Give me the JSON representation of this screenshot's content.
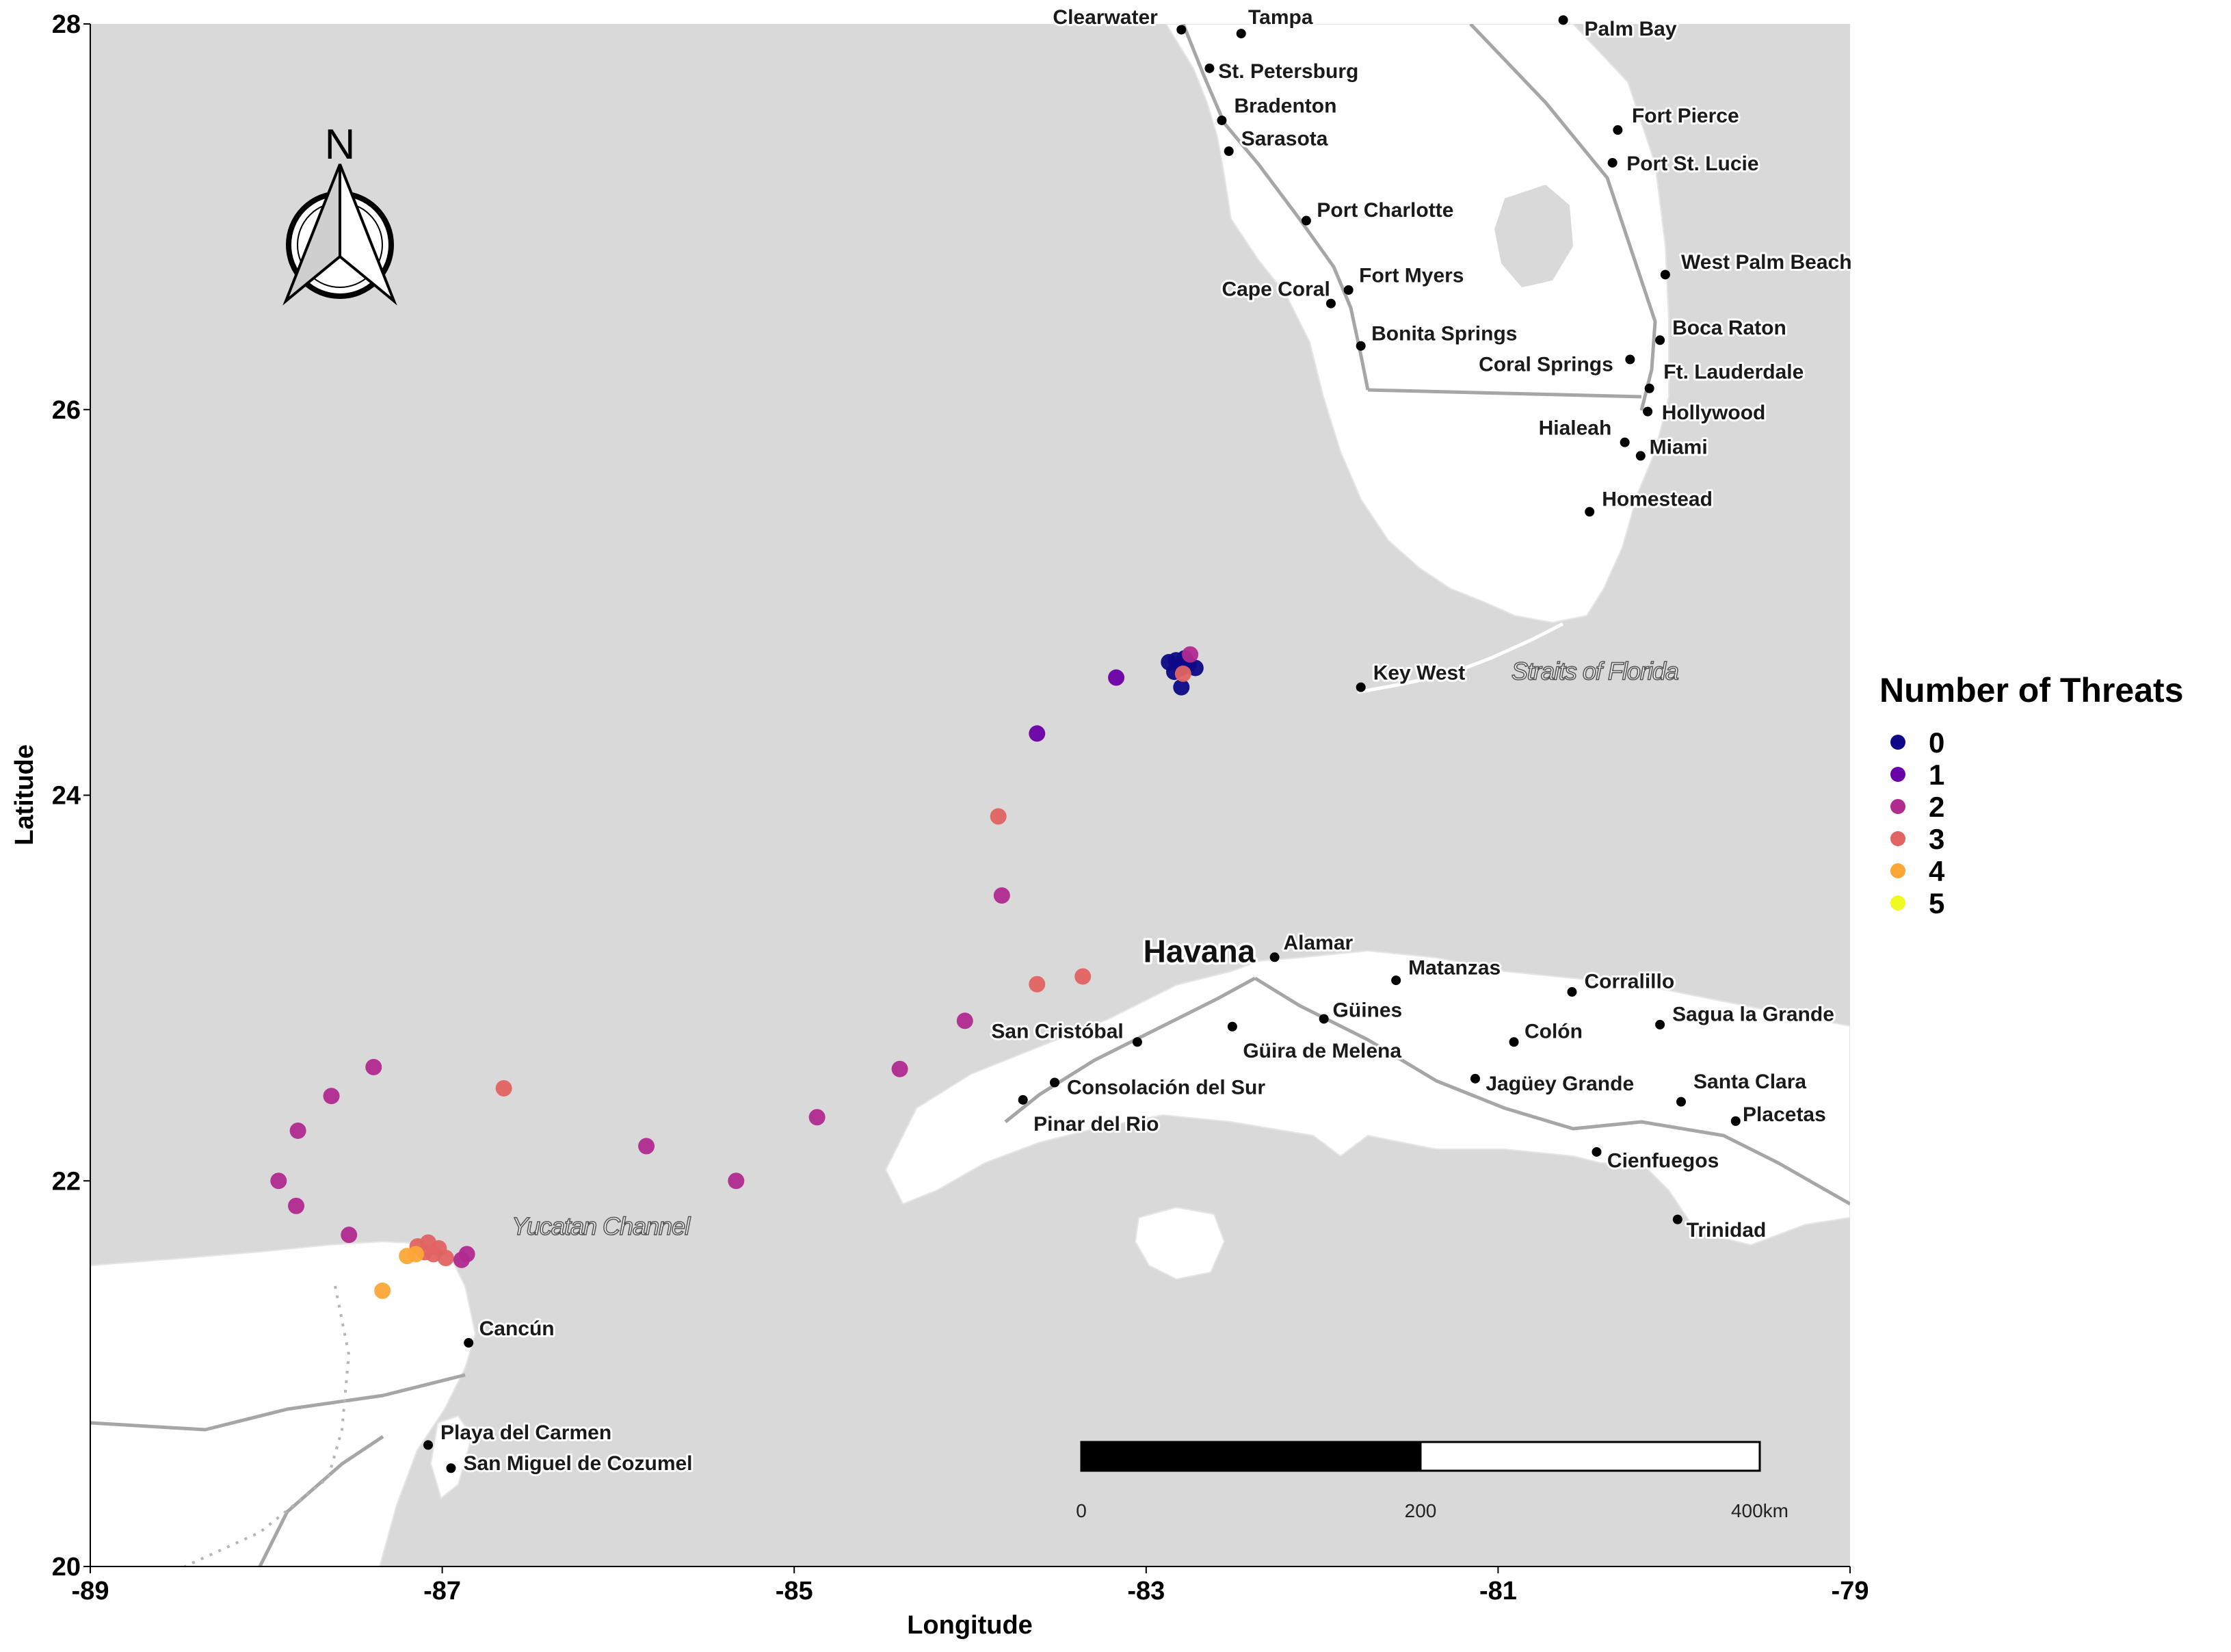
{
  "map": {
    "x_axis": {
      "title": "Longitude",
      "range": [
        -89,
        -79
      ],
      "ticks": [
        -89,
        -87,
        -85,
        -83,
        -81,
        -79
      ],
      "tick_labels": [
        "-89",
        "-87",
        "-85",
        "-83",
        "-81",
        "-79"
      ]
    },
    "y_axis": {
      "title": "Latitude",
      "range": [
        20,
        28
      ],
      "ticks": [
        20,
        22,
        24,
        26,
        28
      ],
      "tick_labels": [
        "20",
        "22",
        "24",
        "26",
        "28"
      ]
    },
    "north_arrow": {
      "label": "N",
      "icon": "north-arrow-icon"
    },
    "scale_bar": {
      "labels": [
        "0",
        "200",
        "400km"
      ],
      "units": "km"
    },
    "water_labels": [
      {
        "text": "Yucatan Channel",
        "lon": -86.1,
        "lat": 21.72
      },
      {
        "text": "Straits of Florida",
        "lon": -80.45,
        "lat": 24.6
      }
    ],
    "capital": {
      "text": "Havana",
      "lon": -82.38,
      "lat": 23.12
    },
    "cities": [
      {
        "name": "Clearwater",
        "lon": -82.8,
        "lat": 27.97,
        "label_lon": -83.53,
        "label_lat": 28.0
      },
      {
        "name": "Tampa",
        "lon": -82.46,
        "lat": 27.95,
        "label_lon": -82.42,
        "label_lat": 28.0
      },
      {
        "name": "Palm Bay",
        "lon": -80.63,
        "lat": 28.02,
        "label_lon": -80.51,
        "label_lat": 27.94
      },
      {
        "name": "St. Petersburg",
        "lon": -82.64,
        "lat": 27.77,
        "label_lon": -82.59,
        "label_lat": 27.72
      },
      {
        "name": "Bradenton",
        "lon": -82.57,
        "lat": 27.5,
        "label_lon": -82.5,
        "label_lat": 27.54
      },
      {
        "name": "Sarasota",
        "lon": -82.53,
        "lat": 27.34,
        "label_lon": -82.46,
        "label_lat": 27.37
      },
      {
        "name": "Fort Pierce",
        "lon": -80.32,
        "lat": 27.45,
        "label_lon": -80.24,
        "label_lat": 27.49
      },
      {
        "name": "Port St. Lucie",
        "lon": -80.35,
        "lat": 27.28,
        "label_lon": -80.27,
        "label_lat": 27.24
      },
      {
        "name": "Port Charlotte",
        "lon": -82.09,
        "lat": 26.98,
        "label_lon": -82.03,
        "label_lat": 27.0
      },
      {
        "name": "West Palm Beach",
        "lon": -80.05,
        "lat": 26.7,
        "label_lon": -79.96,
        "label_lat": 26.73
      },
      {
        "name": "Fort Myers",
        "lon": -81.85,
        "lat": 26.62,
        "label_lon": -81.79,
        "label_lat": 26.66
      },
      {
        "name": "Cape Coral",
        "lon": -81.95,
        "lat": 26.55,
        "label_lon": -82.57,
        "label_lat": 26.59
      },
      {
        "name": "Bonita Springs",
        "lon": -81.78,
        "lat": 26.33,
        "label_lon": -81.72,
        "label_lat": 26.36
      },
      {
        "name": "Boca Raton",
        "lon": -80.08,
        "lat": 26.36,
        "label_lon": -80.01,
        "label_lat": 26.39
      },
      {
        "name": "Coral Springs",
        "lon": -80.25,
        "lat": 26.26,
        "label_lon": -81.11,
        "label_lat": 26.2
      },
      {
        "name": "Ft. Lauderdale",
        "lon": -80.14,
        "lat": 26.11,
        "label_lon": -80.06,
        "label_lat": 26.16
      },
      {
        "name": "Hollywood",
        "lon": -80.15,
        "lat": 25.99,
        "label_lon": -80.07,
        "label_lat": 25.95
      },
      {
        "name": "Hialeah",
        "lon": -80.28,
        "lat": 25.83,
        "label_lon": -80.77,
        "label_lat": 25.87
      },
      {
        "name": "Miami",
        "lon": -80.19,
        "lat": 25.76,
        "label_lon": -80.14,
        "label_lat": 25.77
      },
      {
        "name": "Homestead",
        "lon": -80.48,
        "lat": 25.47,
        "label_lon": -80.41,
        "label_lat": 25.5
      },
      {
        "name": "Key West",
        "lon": -81.78,
        "lat": 24.56,
        "label_lon": -81.71,
        "label_lat": 24.6
      },
      {
        "name": "Alamar",
        "lon": -82.27,
        "lat": 23.16,
        "label_lon": -82.22,
        "label_lat": 23.2
      },
      {
        "name": "Matanzas",
        "lon": -81.58,
        "lat": 23.04,
        "label_lon": -81.51,
        "label_lat": 23.07
      },
      {
        "name": "Corralillo",
        "lon": -80.58,
        "lat": 22.98,
        "label_lon": -80.51,
        "label_lat": 23.0
      },
      {
        "name": "Güines",
        "lon": -81.99,
        "lat": 22.84,
        "label_lon": -81.94,
        "label_lat": 22.85
      },
      {
        "name": "Sagua la Grande",
        "lon": -80.08,
        "lat": 22.81,
        "label_lon": -80.01,
        "label_lat": 22.83
      },
      {
        "name": "San Cristóbal",
        "lon": -83.05,
        "lat": 22.72,
        "label_lon": -83.88,
        "label_lat": 22.74
      },
      {
        "name": "Colón",
        "lon": -80.91,
        "lat": 22.72,
        "label_lon": -80.85,
        "label_lat": 22.74
      },
      {
        "name": "Güira de Melena",
        "lon": -82.51,
        "lat": 22.8,
        "label_lon": -82.45,
        "label_lat": 22.64
      },
      {
        "name": "Consolación del Sur",
        "lon": -83.52,
        "lat": 22.51,
        "label_lon": -83.45,
        "label_lat": 22.45
      },
      {
        "name": "Jagüey Grande",
        "lon": -81.13,
        "lat": 22.53,
        "label_lon": -81.07,
        "label_lat": 22.47
      },
      {
        "name": "Santa Clara",
        "lon": -79.96,
        "lat": 22.41,
        "label_lon": -79.89,
        "label_lat": 22.48
      },
      {
        "name": "Pinar del Rio",
        "lon": -83.7,
        "lat": 22.42,
        "label_lon": -83.64,
        "label_lat": 22.26
      },
      {
        "name": "Placetas",
        "lon": -79.65,
        "lat": 22.31,
        "label_lon": -79.61,
        "label_lat": 22.31
      },
      {
        "name": "Cienfuegos",
        "lon": -80.44,
        "lat": 22.15,
        "label_lon": -80.38,
        "label_lat": 22.07
      },
      {
        "name": "Trinidad",
        "lon": -79.98,
        "lat": 21.8,
        "label_lon": -79.93,
        "label_lat": 21.71
      },
      {
        "name": "Cancún",
        "lon": -86.85,
        "lat": 21.16,
        "label_lon": -86.79,
        "label_lat": 21.2
      },
      {
        "name": "Playa del Carmen",
        "lon": -87.08,
        "lat": 20.63,
        "label_lon": -87.01,
        "label_lat": 20.66
      },
      {
        "name": "San Miguel de Cozumel",
        "lon": -86.95,
        "lat": 20.51,
        "label_lon": -86.88,
        "label_lat": 20.5
      }
    ]
  },
  "legend": {
    "title": "Number of Threats",
    "items": [
      {
        "label": "0",
        "color": "#0d0887"
      },
      {
        "label": "1",
        "color": "#6a00a8"
      },
      {
        "label": "2",
        "color": "#b12a90"
      },
      {
        "label": "3",
        "color": "#e16462"
      },
      {
        "label": "4",
        "color": "#fca636"
      },
      {
        "label": "5",
        "color": "#f0f921"
      }
    ]
  },
  "chart_data": {
    "type": "scatter",
    "xlabel": "Longitude",
    "ylabel": "Latitude",
    "xlim": [
      -89,
      -79
    ],
    "ylim": [
      20,
      28
    ],
    "grid": false,
    "legend_position": "right",
    "points": [
      {
        "lon": -82.87,
        "lat": 24.69,
        "threats": 0
      },
      {
        "lon": -82.83,
        "lat": 24.7,
        "threats": 0
      },
      {
        "lon": -82.8,
        "lat": 24.66,
        "threats": 0
      },
      {
        "lon": -82.76,
        "lat": 24.68,
        "threats": 0
      },
      {
        "lon": -82.84,
        "lat": 24.64,
        "threats": 0
      },
      {
        "lon": -82.72,
        "lat": 24.66,
        "threats": 0
      },
      {
        "lon": -82.78,
        "lat": 24.71,
        "threats": 0
      },
      {
        "lon": -82.8,
        "lat": 24.56,
        "threats": 0
      },
      {
        "lon": -82.75,
        "lat": 24.73,
        "threats": 2
      },
      {
        "lon": -82.79,
        "lat": 24.63,
        "threats": 3
      },
      {
        "lon": -83.17,
        "lat": 24.61,
        "threats": 1
      },
      {
        "lon": -83.62,
        "lat": 24.32,
        "threats": 1
      },
      {
        "lon": -83.84,
        "lat": 23.89,
        "threats": 3
      },
      {
        "lon": -83.82,
        "lat": 23.48,
        "threats": 2
      },
      {
        "lon": -83.62,
        "lat": 23.02,
        "threats": 3
      },
      {
        "lon": -83.36,
        "lat": 23.06,
        "threats": 3
      },
      {
        "lon": -84.03,
        "lat": 22.83,
        "threats": 2
      },
      {
        "lon": -84.4,
        "lat": 22.58,
        "threats": 2
      },
      {
        "lon": -84.87,
        "lat": 22.33,
        "threats": 2
      },
      {
        "lon": -85.33,
        "lat": 22.0,
        "threats": 2
      },
      {
        "lon": -85.84,
        "lat": 22.18,
        "threats": 2
      },
      {
        "lon": -86.65,
        "lat": 22.48,
        "threats": 3
      },
      {
        "lon": -87.39,
        "lat": 22.59,
        "threats": 2
      },
      {
        "lon": -87.63,
        "lat": 22.44,
        "threats": 2
      },
      {
        "lon": -87.82,
        "lat": 22.26,
        "threats": 2
      },
      {
        "lon": -87.93,
        "lat": 22.0,
        "threats": 2
      },
      {
        "lon": -87.83,
        "lat": 21.87,
        "threats": 2
      },
      {
        "lon": -87.53,
        "lat": 21.72,
        "threats": 2
      },
      {
        "lon": -87.14,
        "lat": 21.66,
        "threats": 3
      },
      {
        "lon": -87.08,
        "lat": 21.68,
        "threats": 3
      },
      {
        "lon": -87.02,
        "lat": 21.65,
        "threats": 3
      },
      {
        "lon": -87.05,
        "lat": 21.62,
        "threats": 3
      },
      {
        "lon": -86.98,
        "lat": 21.6,
        "threats": 3
      },
      {
        "lon": -87.1,
        "lat": 21.63,
        "threats": 3
      },
      {
        "lon": -86.86,
        "lat": 21.62,
        "threats": 2
      },
      {
        "lon": -86.89,
        "lat": 21.59,
        "threats": 2
      },
      {
        "lon": -87.2,
        "lat": 21.61,
        "threats": 4
      },
      {
        "lon": -87.15,
        "lat": 21.62,
        "threats": 4
      },
      {
        "lon": -87.34,
        "lat": 21.43,
        "threats": 4
      }
    ]
  }
}
